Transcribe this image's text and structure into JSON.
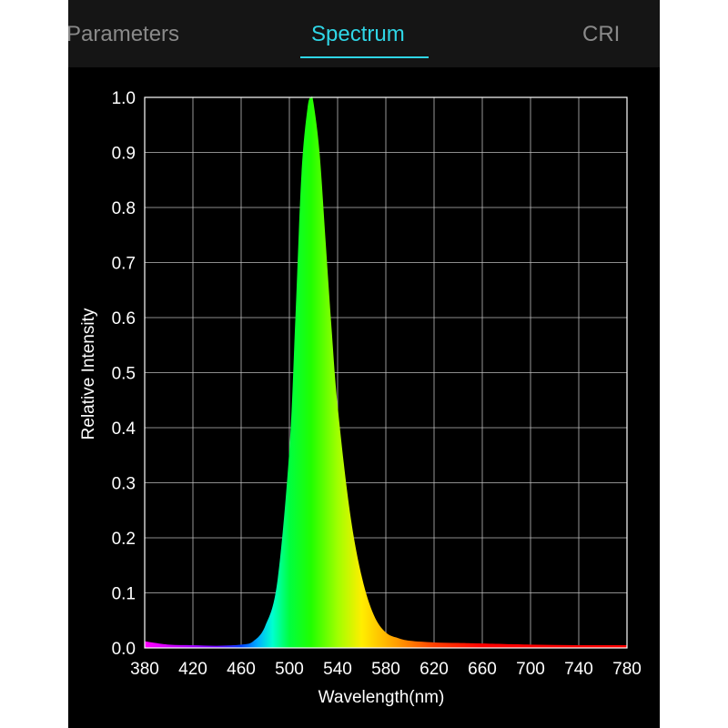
{
  "tabs": [
    {
      "label": "Parameters",
      "active": false
    },
    {
      "label": "Spectrum",
      "active": true
    },
    {
      "label": "CRI",
      "active": false
    }
  ],
  "colors": {
    "background": "#000000",
    "tabbar": "#151515",
    "tab_inactive": "#8a8a8a",
    "tab_active": "#2fd6e6",
    "axis": "#ffffff",
    "grid": "#bdbdbd"
  },
  "chart_data": {
    "type": "area",
    "title": "",
    "xlabel": "Wavelength(nm)",
    "ylabel": "Relative Intensity",
    "xlim": [
      380,
      780
    ],
    "ylim": [
      0,
      1.0
    ],
    "xticks": [
      380,
      420,
      460,
      500,
      540,
      580,
      620,
      660,
      700,
      740,
      780
    ],
    "yticks": [
      "0.0",
      "0.1",
      "0.2",
      "0.3",
      "0.4",
      "0.5",
      "0.6",
      "0.7",
      "0.8",
      "0.9",
      "1.0"
    ],
    "grid": true,
    "fill": "spectral-rainbow",
    "x": [
      380,
      400,
      420,
      440,
      460,
      470,
      480,
      490,
      500,
      505,
      510,
      515,
      518,
      520,
      525,
      530,
      535,
      540,
      550,
      560,
      570,
      580,
      590,
      600,
      620,
      640,
      660,
      700,
      740,
      780
    ],
    "y": [
      0.012,
      0.006,
      0.005,
      0.004,
      0.006,
      0.012,
      0.04,
      0.12,
      0.36,
      0.6,
      0.86,
      0.98,
      1.0,
      0.99,
      0.9,
      0.74,
      0.58,
      0.44,
      0.25,
      0.13,
      0.06,
      0.028,
      0.018,
      0.013,
      0.01,
      0.009,
      0.008,
      0.006,
      0.005,
      0.005
    ]
  }
}
